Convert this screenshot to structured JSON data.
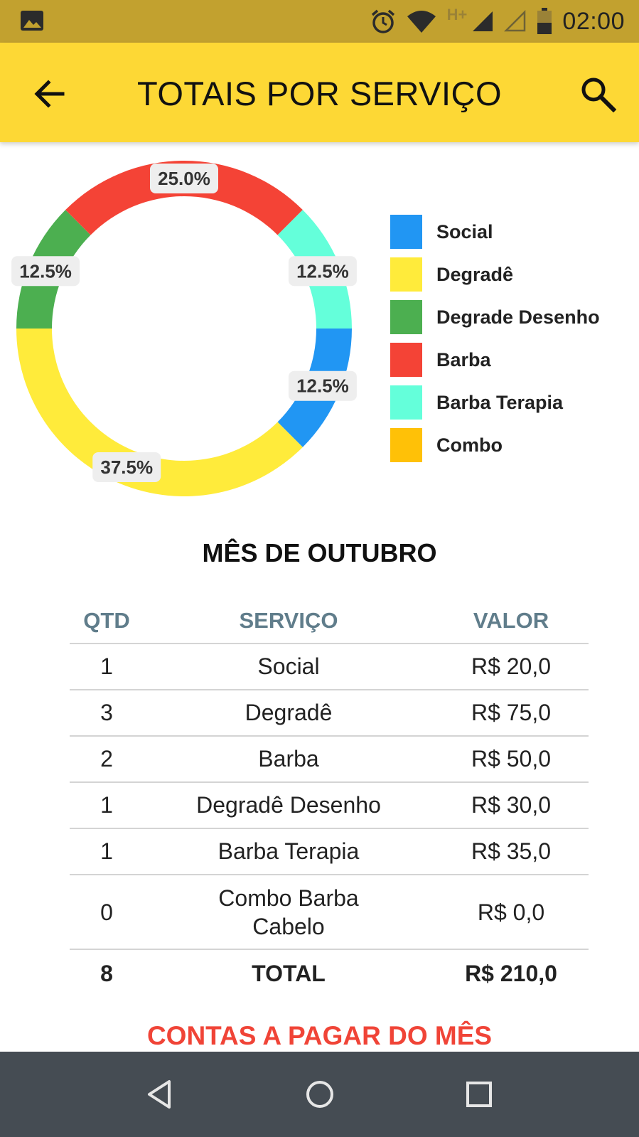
{
  "status_bar": {
    "time": "02:00",
    "icons": [
      "image-icon",
      "alarm-icon",
      "wifi-icon",
      "hplus-icon",
      "signal-icon",
      "signal-empty-icon",
      "battery-icon"
    ],
    "network_label": "H+"
  },
  "app_bar": {
    "title": "TOTAIS POR SERVIÇO",
    "back_icon": "arrow-back-icon",
    "search_icon": "search-icon"
  },
  "chart_data": {
    "type": "pie",
    "style": "donut",
    "legend_position": "right",
    "slices": [
      {
        "name": "Social",
        "value": 12.5,
        "label": "12.5%",
        "color": "#2196f3"
      },
      {
        "name": "Degradê",
        "value": 37.5,
        "label": "37.5%",
        "color": "#ffeb3b"
      },
      {
        "name": "Degrade Desenho",
        "value": 12.5,
        "label": "12.5%",
        "color": "#4caf50"
      },
      {
        "name": "Barba",
        "value": 25.0,
        "label": "25.0%",
        "color": "#f44336"
      },
      {
        "name": "Barba Terapia",
        "value": 12.5,
        "label": "12.5%",
        "color": "#64ffda"
      },
      {
        "name": "Combo",
        "value": 0,
        "label": "",
        "color": "#ffc107"
      }
    ]
  },
  "month_title": "MÊS DE OUTUBRO",
  "table": {
    "headers": {
      "qty": "QTD",
      "service": "SERVIÇO",
      "value": "VALOR"
    },
    "rows": [
      {
        "qty": "1",
        "service": "Social",
        "value": "R$ 20,0"
      },
      {
        "qty": "3",
        "service": "Degradê",
        "value": "R$ 75,0"
      },
      {
        "qty": "2",
        "service": "Barba",
        "value": "R$ 50,0"
      },
      {
        "qty": "1",
        "service": "Degradê Desenho",
        "value": "R$ 30,0"
      },
      {
        "qty": "1",
        "service": "Barba Terapia",
        "value": "R$ 35,0"
      },
      {
        "qty": "0",
        "service_line1": "Combo Barba",
        "service_line2": "Cabelo",
        "value": "R$ 0,0"
      }
    ],
    "total": {
      "qty": "8",
      "label": "TOTAL",
      "value": "R$ 210,0"
    }
  },
  "bills_link": "CONTAS A PAGAR DO MÊS",
  "nav_bar": {
    "back": "nav-back-icon",
    "home": "nav-home-icon",
    "recents": "nav-recents-icon"
  }
}
